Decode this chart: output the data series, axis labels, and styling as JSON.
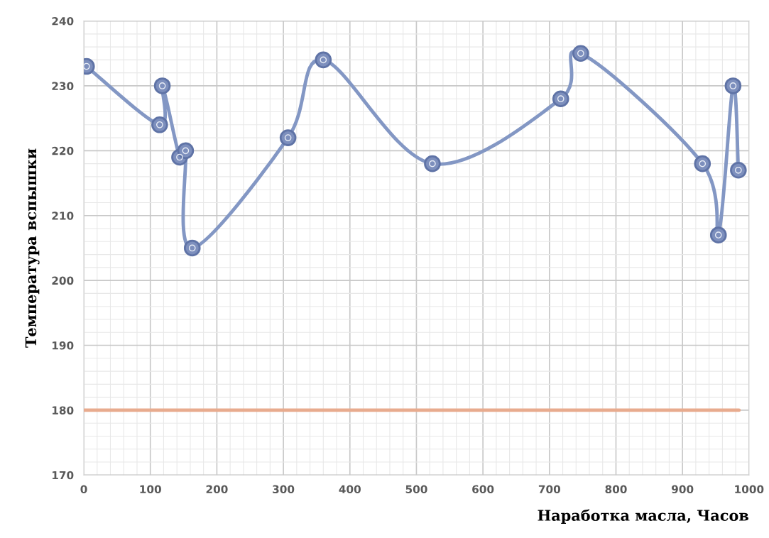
{
  "chart_data": {
    "type": "line",
    "xlabel": "Наработка масла, Часов",
    "ylabel": "Температура вспышки",
    "xlim": [
      0,
      1000
    ],
    "xticks": [
      0,
      100,
      200,
      300,
      400,
      500,
      600,
      700,
      800,
      900,
      1000
    ],
    "ylim": [
      170,
      240
    ],
    "yticks": [
      170,
      180,
      190,
      200,
      210,
      220,
      230,
      240
    ],
    "grid": true,
    "line_style": "solid",
    "series": [
      {
        "color": "#8397c4",
        "marker": "circle",
        "x": [
          4,
          114,
          118,
          144,
          153,
          163,
          307,
          360,
          524,
          717,
          747,
          930,
          954,
          976,
          984
        ],
        "values": [
          233,
          224,
          230,
          219,
          220,
          205,
          222,
          234,
          218,
          228,
          235,
          218,
          207,
          230,
          217
        ]
      },
      {
        "color": "#e8ab8e",
        "x": [
          0,
          985
        ],
        "values": [
          180,
          180
        ]
      }
    ]
  }
}
